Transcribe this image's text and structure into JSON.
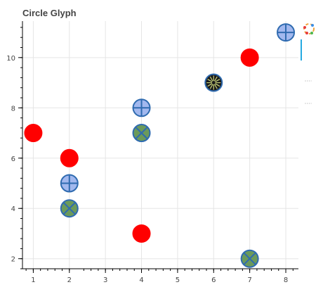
{
  "title": "Circle Glyph",
  "toolbar": {
    "logo_icon": "bokeh-logo-icon",
    "tools": [
      "pan-tool-icon",
      "wheel-zoom-tool-icon",
      "reset-tool-icon"
    ]
  },
  "chart_data": {
    "type": "scatter",
    "title": "Circle Glyph",
    "xlabel": "",
    "ylabel": "",
    "xlim": [
      0.7,
      8.35
    ],
    "ylim": [
      1.6,
      11.45
    ],
    "x_ticks": [
      1,
      2,
      3,
      4,
      5,
      6,
      7,
      8
    ],
    "y_ticks": [
      2,
      4,
      6,
      8,
      10
    ],
    "grid": true,
    "legend": "none",
    "series": [
      {
        "marker": "circle",
        "fill": "#ff0000",
        "stroke": "#ff0000",
        "points": [
          {
            "x": 1,
            "y": 7
          },
          {
            "x": 2,
            "y": 6
          },
          {
            "x": 4,
            "y": 3
          },
          {
            "x": 7,
            "y": 10
          }
        ]
      },
      {
        "marker": "circle_cross",
        "fill": "#a2b8ee",
        "stroke": "#2f6bb0",
        "points": [
          {
            "x": 2,
            "y": 5
          },
          {
            "x": 4,
            "y": 8
          },
          {
            "x": 8,
            "y": 11
          }
        ]
      },
      {
        "marker": "circle_x",
        "fill": "#6b9a5a",
        "stroke": "#2f6bb0",
        "points": [
          {
            "x": 2,
            "y": 4
          },
          {
            "x": 4,
            "y": 7
          },
          {
            "x": 7,
            "y": 2
          }
        ]
      },
      {
        "marker": "circle_dot_star",
        "fill": "#1a1a1a",
        "stroke": "#2f6bb0",
        "points": [
          {
            "x": 6,
            "y": 9
          }
        ]
      }
    ]
  }
}
